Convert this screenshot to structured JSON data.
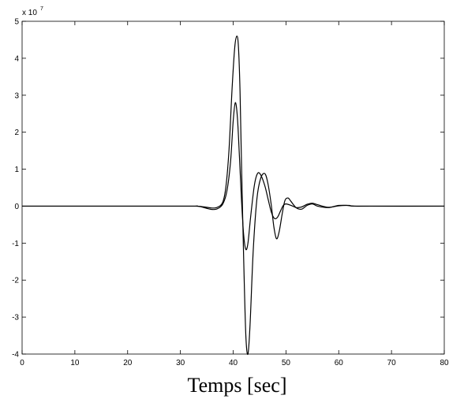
{
  "chart_data": {
    "type": "line",
    "title": "",
    "xlabel": "Temps [sec]",
    "ylabel": "",
    "y_multiplier_text": "x 10",
    "y_multiplier_exponent": "7",
    "xlim": [
      0,
      80
    ],
    "ylim": [
      -4,
      5
    ],
    "x_ticks": [
      0,
      10,
      20,
      30,
      40,
      50,
      60,
      70,
      80
    ],
    "y_ticks": [
      -4,
      -3,
      -2,
      -1,
      0,
      1,
      2,
      3,
      4,
      5
    ],
    "grid": false,
    "legend": "none",
    "line_color": "#000000",
    "series": [
      {
        "x": [
          0,
          30,
          33,
          34,
          35,
          36,
          37,
          38,
          38.8,
          39.5,
          40,
          40.4,
          40.8,
          41.2,
          41.6,
          42,
          42.4,
          42.8,
          43.3,
          44,
          44.6,
          45.2,
          46,
          46.6,
          47.2,
          47.8,
          48.4,
          49,
          49.5,
          50,
          51,
          52,
          53,
          54,
          55,
          56,
          58,
          60,
          61.5,
          63,
          66,
          80
        ],
        "y": [
          0,
          0,
          0,
          -0.02,
          -0.06,
          -0.09,
          -0.07,
          0.05,
          0.4,
          1.2,
          2.3,
          2.8,
          2.4,
          1.3,
          0.1,
          -0.8,
          -1.17,
          -1.0,
          -0.3,
          0.55,
          0.88,
          0.85,
          0.55,
          0.2,
          -0.15,
          -0.33,
          -0.3,
          -0.12,
          0.02,
          0.06,
          0.02,
          -0.04,
          -0.02,
          0.05,
          0.08,
          0.04,
          -0.03,
          0.01,
          0.02,
          0.0,
          0.0,
          0
        ]
      },
      {
        "x": [
          0,
          30,
          33,
          34,
          35,
          36,
          37,
          38,
          38.6,
          39.2,
          39.8,
          40.3,
          40.7,
          41.0,
          41.3,
          41.6,
          42.0,
          42.4,
          42.8,
          43.2,
          43.8,
          44.5,
          45.2,
          46,
          46.6,
          47.2,
          47.7,
          48.2,
          48.7,
          49.3,
          49.8,
          50.4,
          51,
          52,
          53,
          54,
          55,
          56,
          58,
          60,
          62,
          64,
          80
        ],
        "y": [
          0,
          0,
          0,
          -0.01,
          -0.03,
          -0.05,
          -0.03,
          0.1,
          0.5,
          1.5,
          3.2,
          4.3,
          4.6,
          4.3,
          3.1,
          1.0,
          -1.5,
          -3.5,
          -4.0,
          -3.2,
          -1.2,
          0.2,
          0.75,
          0.88,
          0.6,
          0.05,
          -0.55,
          -0.88,
          -0.7,
          -0.2,
          0.15,
          0.22,
          0.12,
          -0.05,
          -0.08,
          0.02,
          0.06,
          0.0,
          -0.04,
          0.02,
          0.02,
          0.0,
          0
        ]
      }
    ]
  }
}
